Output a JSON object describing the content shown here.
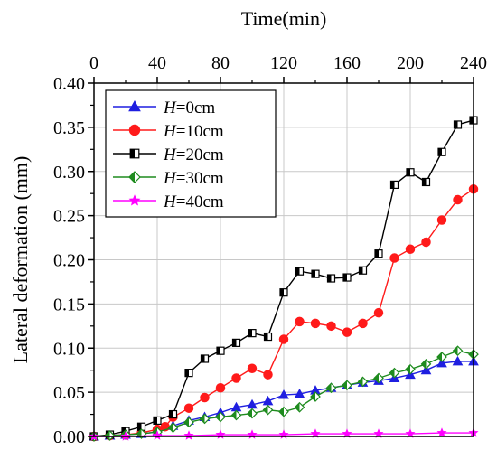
{
  "chart_data": {
    "type": "line",
    "xlabel": "Time(min)",
    "ylabel": "Lateral deformation (mm)",
    "xlim": [
      0,
      240
    ],
    "ylim": [
      0,
      0.4
    ],
    "xticks": [
      0,
      40,
      80,
      120,
      160,
      200,
      240
    ],
    "xtick_labels": [
      "0",
      "40",
      "80",
      "120",
      "160",
      "200",
      "240"
    ],
    "yticks": [
      0,
      0.05,
      0.1,
      0.15,
      0.2,
      0.25,
      0.3,
      0.35,
      0.4
    ],
    "ytick_labels": [
      "0.00",
      "0.05",
      "0.10",
      "0.15",
      "0.20",
      "0.25",
      "0.30",
      "0.35",
      "0.40"
    ],
    "x_axis_position": "top",
    "grid": true,
    "legend_position": "top-left",
    "series": [
      {
        "name": "H=0cm",
        "name_italic": "H",
        "name_rest": "=0cm",
        "color": "#1f1fe0",
        "marker": "triangle",
        "x": [
          0,
          10,
          20,
          30,
          40,
          50,
          60,
          70,
          80,
          90,
          100,
          110,
          120,
          130,
          140,
          150,
          160,
          170,
          180,
          190,
          200,
          210,
          220,
          230,
          240
        ],
        "y": [
          0.0,
          0.001,
          0.002,
          0.003,
          0.005,
          0.012,
          0.018,
          0.022,
          0.027,
          0.033,
          0.036,
          0.04,
          0.047,
          0.048,
          0.052,
          0.055,
          0.058,
          0.061,
          0.063,
          0.066,
          0.07,
          0.075,
          0.083,
          0.085,
          0.085
        ]
      },
      {
        "name": "H=10cm",
        "name_italic": "H",
        "name_rest": "=10cm",
        "color": "#ff1a1a",
        "marker": "circle",
        "x": [
          0,
          10,
          20,
          30,
          40,
          45,
          50,
          60,
          70,
          80,
          90,
          100,
          110,
          120,
          130,
          140,
          150,
          160,
          170,
          180,
          190,
          200,
          210,
          220,
          230,
          240
        ],
        "y": [
          0.0,
          0.001,
          0.002,
          0.004,
          0.008,
          0.011,
          0.022,
          0.032,
          0.044,
          0.055,
          0.066,
          0.077,
          0.07,
          0.11,
          0.13,
          0.128,
          0.125,
          0.118,
          0.128,
          0.14,
          0.202,
          0.212,
          0.22,
          0.245,
          0.268,
          0.28
        ]
      },
      {
        "name": "H=20cm",
        "name_italic": "H",
        "name_rest": "=20cm",
        "color": "#000000",
        "marker": "square",
        "x": [
          0,
          10,
          20,
          30,
          40,
          50,
          60,
          70,
          80,
          90,
          100,
          110,
          120,
          130,
          140,
          150,
          160,
          170,
          180,
          190,
          200,
          210,
          220,
          230,
          240
        ],
        "y": [
          0.0,
          0.002,
          0.006,
          0.011,
          0.018,
          0.025,
          0.072,
          0.088,
          0.097,
          0.106,
          0.117,
          0.113,
          0.163,
          0.187,
          0.184,
          0.179,
          0.18,
          0.188,
          0.207,
          0.285,
          0.299,
          0.288,
          0.322,
          0.353,
          0.358
        ]
      },
      {
        "name": "H=30cm",
        "name_italic": "H",
        "name_rest": "=30cm",
        "color": "#1e8b1e",
        "marker": "diamond",
        "x": [
          0,
          10,
          20,
          30,
          40,
          50,
          60,
          70,
          80,
          90,
          100,
          110,
          120,
          130,
          140,
          150,
          160,
          170,
          180,
          190,
          200,
          210,
          220,
          230,
          240
        ],
        "y": [
          0.0,
          0.001,
          0.002,
          0.003,
          0.005,
          0.01,
          0.016,
          0.02,
          0.022,
          0.024,
          0.026,
          0.03,
          0.028,
          0.033,
          0.045,
          0.055,
          0.058,
          0.062,
          0.066,
          0.072,
          0.076,
          0.082,
          0.09,
          0.097,
          0.093
        ]
      },
      {
        "name": "H=40cm",
        "name_italic": "H",
        "name_rest": "=40cm",
        "color": "#ff00ff",
        "marker": "star",
        "x": [
          0,
          20,
          40,
          60,
          80,
          100,
          120,
          140,
          160,
          180,
          200,
          220,
          240
        ],
        "y": [
          0.0,
          0.0,
          0.001,
          0.001,
          0.002,
          0.002,
          0.002,
          0.003,
          0.003,
          0.003,
          0.003,
          0.004,
          0.004
        ]
      }
    ]
  }
}
